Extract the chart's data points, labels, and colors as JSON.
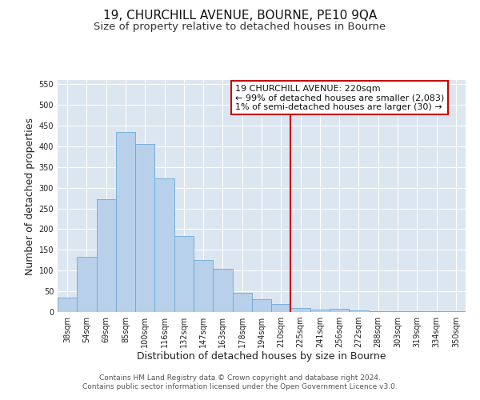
{
  "title": "19, CHURCHILL AVENUE, BOURNE, PE10 9QA",
  "subtitle": "Size of property relative to detached houses in Bourne",
  "xlabel": "Distribution of detached houses by size in Bourne",
  "ylabel": "Number of detached properties",
  "categories": [
    "38sqm",
    "54sqm",
    "69sqm",
    "85sqm",
    "100sqm",
    "116sqm",
    "132sqm",
    "147sqm",
    "163sqm",
    "178sqm",
    "194sqm",
    "210sqm",
    "225sqm",
    "241sqm",
    "256sqm",
    "272sqm",
    "288sqm",
    "303sqm",
    "319sqm",
    "334sqm",
    "350sqm"
  ],
  "values": [
    35,
    133,
    273,
    435,
    405,
    323,
    183,
    125,
    105,
    46,
    30,
    20,
    9,
    6,
    8,
    4,
    2,
    2,
    2,
    1,
    1
  ],
  "bar_color": "#b8d0ea",
  "bar_edge_color": "#6aaad4",
  "vline_x_index": 12,
  "vline_color": "#cc0000",
  "ylim": [
    0,
    560
  ],
  "yticks": [
    0,
    50,
    100,
    150,
    200,
    250,
    300,
    350,
    400,
    450,
    500,
    550
  ],
  "annotation_title": "19 CHURCHILL AVENUE: 220sqm",
  "annotation_line1": "← 99% of detached houses are smaller (2,083)",
  "annotation_line2": "1% of semi-detached houses are larger (30) →",
  "annotation_box_color": "#ffffff",
  "annotation_box_edge_color": "#cc0000",
  "footer_line1": "Contains HM Land Registry data © Crown copyright and database right 2024.",
  "footer_line2": "Contains public sector information licensed under the Open Government Licence v3.0.",
  "background_color": "#ffffff",
  "grid_color": "#dce6f0",
  "title_fontsize": 11,
  "subtitle_fontsize": 9.5,
  "axis_label_fontsize": 9,
  "tick_fontsize": 7,
  "annotation_fontsize": 8,
  "footer_fontsize": 6.5
}
